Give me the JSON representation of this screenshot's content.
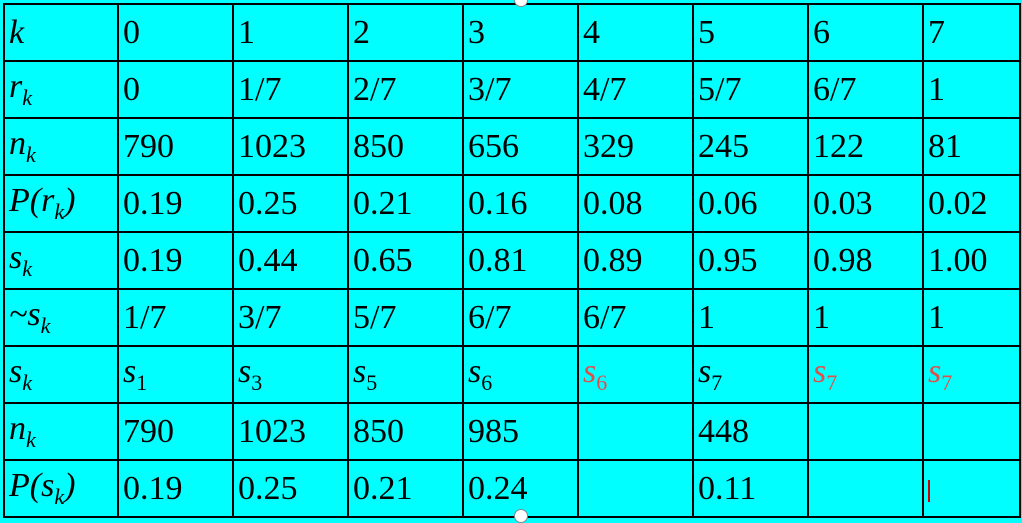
{
  "table": {
    "rows": [
      {
        "name": "k",
        "head": {
          "main": "k",
          "sub": ""
        },
        "cells": [
          {
            "v": "0"
          },
          {
            "v": "1"
          },
          {
            "v": "2"
          },
          {
            "v": "3"
          },
          {
            "v": "4"
          },
          {
            "v": "5"
          },
          {
            "v": "6"
          },
          {
            "v": "7"
          }
        ]
      },
      {
        "name": "rk",
        "head": {
          "main": "r",
          "sub": "k"
        },
        "cells": [
          {
            "v": "0"
          },
          {
            "v": "1/7"
          },
          {
            "v": "2/7"
          },
          {
            "v": "3/7"
          },
          {
            "v": "4/7"
          },
          {
            "v": "5/7"
          },
          {
            "v": "6/7"
          },
          {
            "v": "1"
          }
        ]
      },
      {
        "name": "nk",
        "head": {
          "main": "n",
          "sub": "k"
        },
        "cells": [
          {
            "v": "790"
          },
          {
            "v": "1023"
          },
          {
            "v": "850"
          },
          {
            "v": "656"
          },
          {
            "v": "329"
          },
          {
            "v": "245"
          },
          {
            "v": "122"
          },
          {
            "v": "81"
          }
        ]
      },
      {
        "name": "prk",
        "head": {
          "main": "P(r",
          "sub": "k",
          "after": ")"
        },
        "cells": [
          {
            "v": "0.19"
          },
          {
            "v": "0.25"
          },
          {
            "v": "0.21"
          },
          {
            "v": "0.16"
          },
          {
            "v": "0.08"
          },
          {
            "v": "0.06"
          },
          {
            "v": "0.03"
          },
          {
            "v": "0.02"
          }
        ]
      },
      {
        "name": "sk",
        "head": {
          "main": "s",
          "sub": "k"
        },
        "cells": [
          {
            "v": "0.19"
          },
          {
            "v": "0.44"
          },
          {
            "v": "0.65"
          },
          {
            "v": "0.81"
          },
          {
            "v": "0.89"
          },
          {
            "v": "0.95"
          },
          {
            "v": "0.98"
          },
          {
            "v": "1.00"
          }
        ]
      },
      {
        "name": "tsk",
        "head": {
          "main": "~s",
          "sub": "k"
        },
        "cells": [
          {
            "v": "1/7"
          },
          {
            "v": "3/7"
          },
          {
            "v": "5/7"
          },
          {
            "v": "6/7"
          },
          {
            "v": "6/7"
          },
          {
            "v": "1"
          },
          {
            "v": "1"
          },
          {
            "v": "1"
          }
        ]
      },
      {
        "name": "sk-map",
        "head": {
          "main": "s",
          "sub": "k"
        },
        "cells": [
          {
            "v": "s",
            "sub": "1",
            "italic": true
          },
          {
            "v": "s",
            "sub": "3",
            "italic": true
          },
          {
            "v": "s",
            "sub": "5",
            "italic": true
          },
          {
            "v": "s",
            "sub": "6",
            "italic": true
          },
          {
            "v": "s",
            "sub": "6",
            "italic": true,
            "red": true
          },
          {
            "v": "s",
            "sub": "7",
            "italic": true
          },
          {
            "v": "s",
            "sub": "7",
            "italic": true,
            "red": true
          },
          {
            "v": "s",
            "sub": "7",
            "italic": true,
            "red": true
          }
        ]
      },
      {
        "name": "nk-out",
        "head": {
          "main": "n",
          "sub": "k"
        },
        "cells": [
          {
            "v": "790"
          },
          {
            "v": "1023"
          },
          {
            "v": "850"
          },
          {
            "v": "985"
          },
          {
            "v": ""
          },
          {
            "v": "448"
          },
          {
            "v": ""
          },
          {
            "v": ""
          }
        ]
      },
      {
        "name": "psk",
        "head": {
          "main": "P(s",
          "sub": "k",
          "after": ")"
        },
        "cells": [
          {
            "v": "0.19"
          },
          {
            "v": "0.25"
          },
          {
            "v": "0.21"
          },
          {
            "v": "0.24"
          },
          {
            "v": ""
          },
          {
            "v": "0.11"
          },
          {
            "v": ""
          },
          {
            "v": "",
            "cursor": true
          }
        ]
      }
    ]
  },
  "colors": {
    "background": "#00ffff",
    "border": "#000000",
    "highlight_text": "#e0504a",
    "cursor": "#d40000"
  }
}
